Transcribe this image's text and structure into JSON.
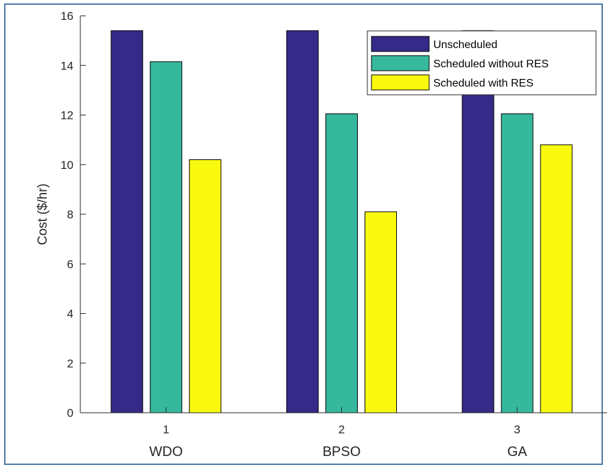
{
  "chart_data": {
    "type": "bar",
    "categories": [
      "1",
      "2",
      "3"
    ],
    "category_names": [
      "WDO",
      "BPSO",
      "GA"
    ],
    "series": [
      {
        "name": "Unscheduled",
        "values": [
          15.4,
          15.4,
          15.4
        ],
        "color": "#352a87"
      },
      {
        "name": "Scheduled without RES",
        "values": [
          14.15,
          12.05,
          12.05
        ],
        "color": "#36b89d"
      },
      {
        "name": "Scheduled with RES",
        "values": [
          10.2,
          8.1,
          10.8
        ],
        "color": "#f9f90f"
      }
    ],
    "title": "",
    "xlabel": "",
    "ylabel": "Cost ($/hr)",
    "ylim": [
      0,
      16
    ],
    "yticks": [
      0,
      2,
      4,
      6,
      8,
      10,
      12,
      14,
      16
    ],
    "grid": false,
    "legend_position": "top-right"
  }
}
